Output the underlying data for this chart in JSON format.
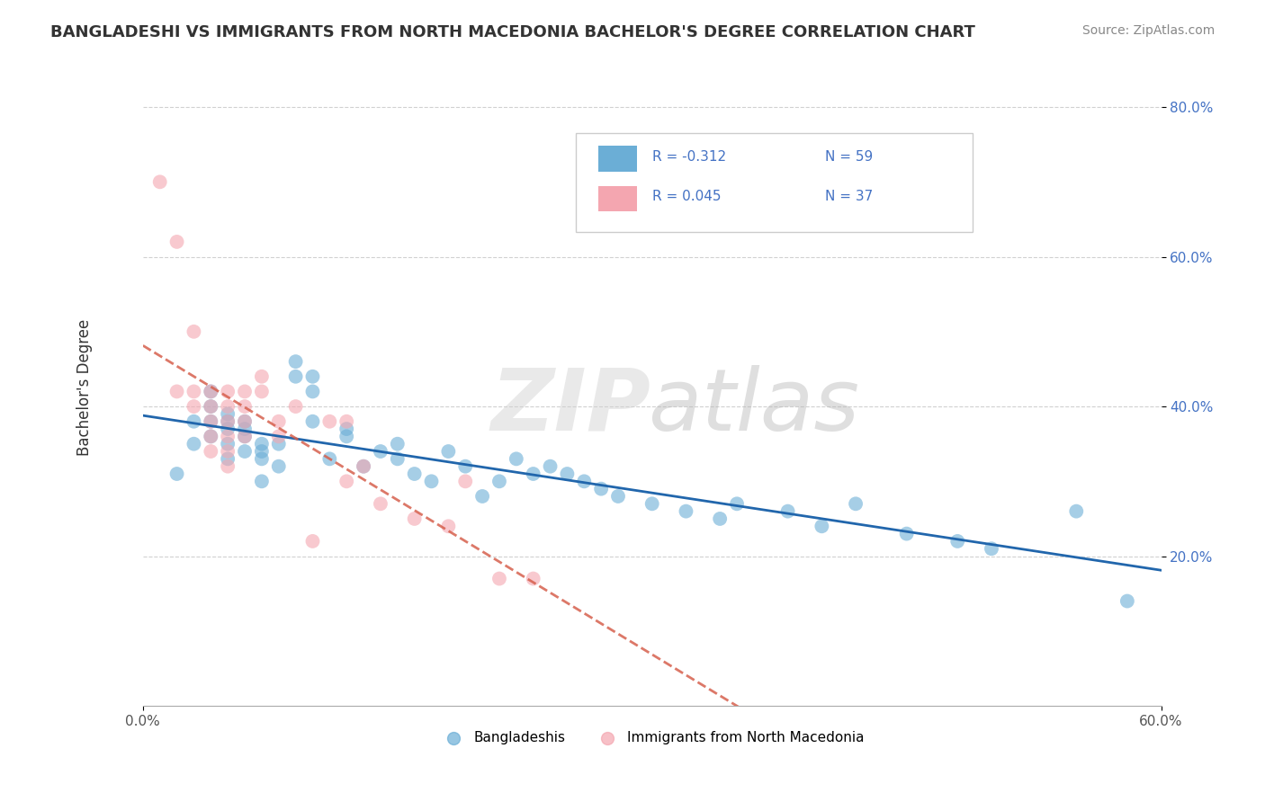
{
  "title": "BANGLADESHI VS IMMIGRANTS FROM NORTH MACEDONIA BACHELOR'S DEGREE CORRELATION CHART",
  "source": "Source: ZipAtlas.com",
  "ylabel": "Bachelor's Degree",
  "xlabel": "",
  "xlim": [
    0.0,
    0.6
  ],
  "ylim": [
    0.0,
    0.85
  ],
  "y_ticks_right": [
    0.2,
    0.4,
    0.6,
    0.8
  ],
  "y_tick_labels_right": [
    "20.0%",
    "40.0%",
    "60.0%",
    "80.0%"
  ],
  "legend_r1": "R = -0.312",
  "legend_n1": "N = 59",
  "legend_r2": "R = 0.045",
  "legend_n2": "N = 37",
  "blue_color": "#6baed6",
  "pink_color": "#f4a6b0",
  "blue_line_color": "#2166ac",
  "pink_line_color": "#d6604d",
  "grid_color": "#cccccc",
  "background_color": "#ffffff",
  "scatter_blue_x": [
    0.02,
    0.03,
    0.03,
    0.04,
    0.04,
    0.04,
    0.04,
    0.05,
    0.05,
    0.05,
    0.05,
    0.05,
    0.06,
    0.06,
    0.06,
    0.06,
    0.07,
    0.07,
    0.07,
    0.07,
    0.08,
    0.08,
    0.09,
    0.09,
    0.1,
    0.1,
    0.1,
    0.11,
    0.12,
    0.12,
    0.13,
    0.14,
    0.15,
    0.15,
    0.16,
    0.17,
    0.18,
    0.19,
    0.2,
    0.21,
    0.22,
    0.23,
    0.24,
    0.25,
    0.26,
    0.27,
    0.28,
    0.3,
    0.32,
    0.34,
    0.35,
    0.38,
    0.4,
    0.42,
    0.45,
    0.48,
    0.5,
    0.55,
    0.58
  ],
  "scatter_blue_y": [
    0.31,
    0.38,
    0.35,
    0.42,
    0.38,
    0.4,
    0.36,
    0.38,
    0.35,
    0.37,
    0.33,
    0.39,
    0.37,
    0.34,
    0.36,
    0.38,
    0.34,
    0.33,
    0.35,
    0.3,
    0.32,
    0.35,
    0.44,
    0.46,
    0.42,
    0.44,
    0.38,
    0.33,
    0.37,
    0.36,
    0.32,
    0.34,
    0.35,
    0.33,
    0.31,
    0.3,
    0.34,
    0.32,
    0.28,
    0.3,
    0.33,
    0.31,
    0.32,
    0.31,
    0.3,
    0.29,
    0.28,
    0.27,
    0.26,
    0.25,
    0.27,
    0.26,
    0.24,
    0.27,
    0.23,
    0.22,
    0.21,
    0.26,
    0.14
  ],
  "scatter_pink_x": [
    0.01,
    0.02,
    0.02,
    0.03,
    0.03,
    0.03,
    0.04,
    0.04,
    0.04,
    0.04,
    0.04,
    0.05,
    0.05,
    0.05,
    0.05,
    0.05,
    0.05,
    0.06,
    0.06,
    0.06,
    0.06,
    0.07,
    0.07,
    0.08,
    0.08,
    0.09,
    0.1,
    0.11,
    0.12,
    0.12,
    0.13,
    0.14,
    0.16,
    0.18,
    0.19,
    0.21,
    0.23
  ],
  "scatter_pink_y": [
    0.7,
    0.62,
    0.42,
    0.5,
    0.42,
    0.4,
    0.42,
    0.4,
    0.38,
    0.36,
    0.34,
    0.42,
    0.4,
    0.38,
    0.36,
    0.34,
    0.32,
    0.42,
    0.4,
    0.38,
    0.36,
    0.44,
    0.42,
    0.38,
    0.36,
    0.4,
    0.22,
    0.38,
    0.38,
    0.3,
    0.32,
    0.27,
    0.25,
    0.24,
    0.3,
    0.17,
    0.17
  ]
}
